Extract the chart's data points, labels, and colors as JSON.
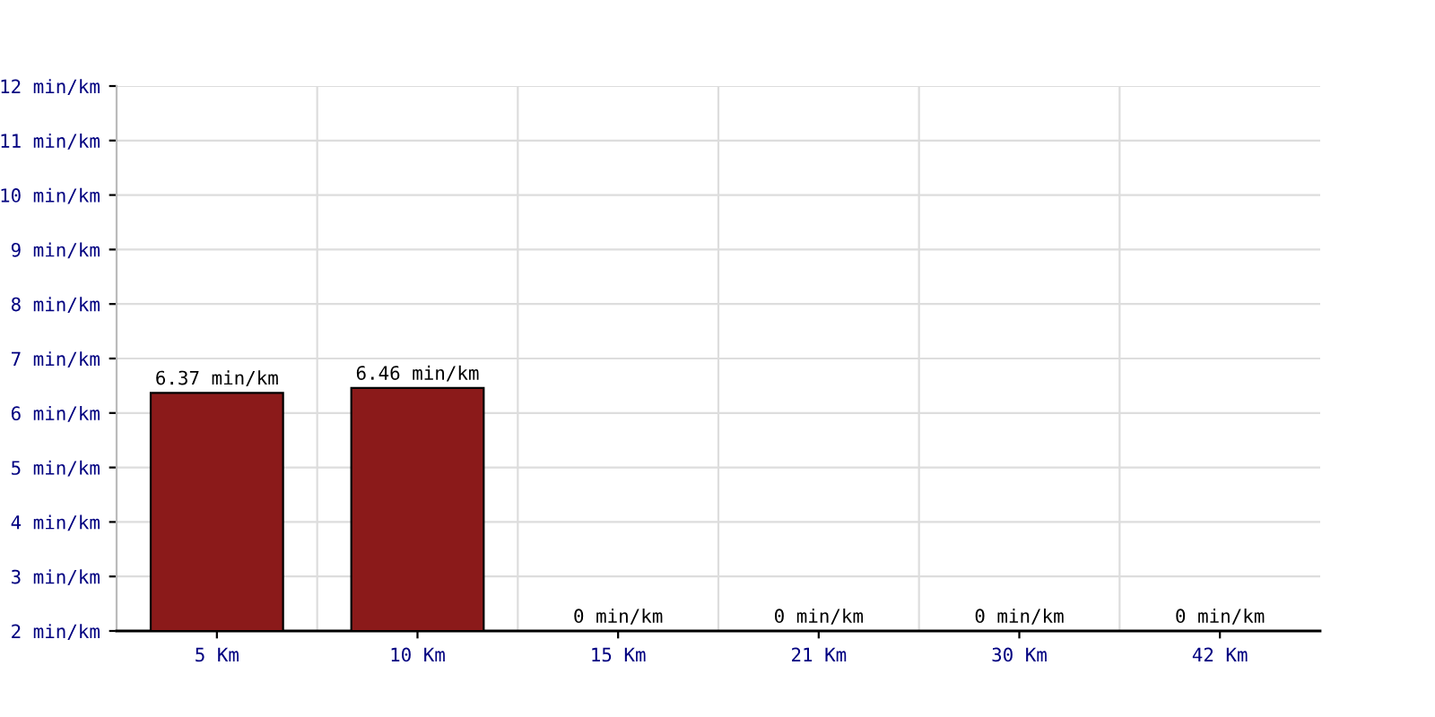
{
  "chart_data": {
    "type": "bar",
    "categories": [
      "5 Km",
      "10 Km",
      "15 Km",
      "21 Km",
      "30 Km",
      "42 Km"
    ],
    "values": [
      6.37,
      6.46,
      null,
      null,
      null,
      null
    ],
    "value_labels": [
      "6.37 min/km",
      "6.46 min/km",
      null,
      null,
      null,
      null
    ],
    "annotations": [
      "0 min/km",
      "0 min/km",
      "0 min/km",
      "0 min/km"
    ],
    "color": "#8b1a1a",
    "ylim": [
      2,
      12
    ],
    "yticks": [
      {
        "value": 2,
        "label": "2 min/km"
      },
      {
        "value": 3,
        "label": "3 min/km"
      },
      {
        "value": 4,
        "label": "4 min/km"
      },
      {
        "value": 5,
        "label": "5 min/km"
      },
      {
        "value": 6,
        "label": "6 min/km"
      },
      {
        "value": 7,
        "label": "7 min/km"
      },
      {
        "value": 8,
        "label": "8 min/km"
      },
      {
        "value": 9,
        "label": "9 min/km"
      },
      {
        "value": 10,
        "label": "10 min/km"
      },
      {
        "value": 11,
        "label": "11 min/km"
      },
      {
        "value": 12,
        "label": "12 min/km"
      }
    ],
    "grid": true,
    "legend": false
  }
}
